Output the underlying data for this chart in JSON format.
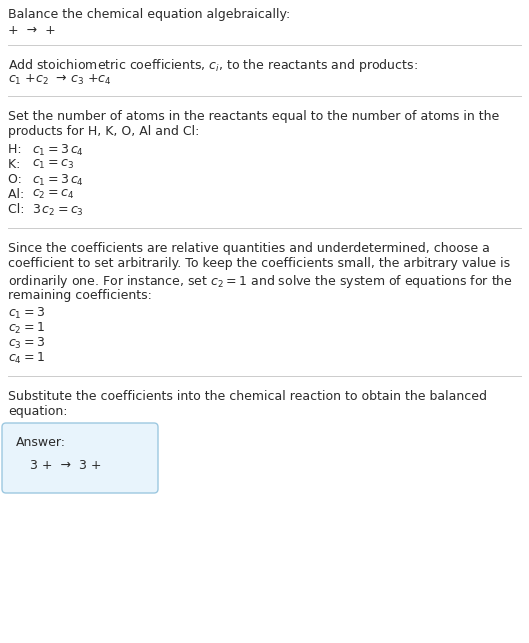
{
  "title": "Balance the chemical equation algebraically:",
  "line1": "+  →  +",
  "section2_title": "Add stoichiometric coefficients, $c_i$, to the reactants and products:",
  "line2_parts": [
    "$c_1$",
    " +",
    "$c_2$",
    "  → ",
    "$c_3$",
    " +",
    "$c_4$"
  ],
  "section3_title_l1": "Set the number of atoms in the reactants equal to the number of atoms in the",
  "section3_title_l2": "products for H, K, O, Al and Cl:",
  "equations": [
    [
      "H:  ",
      "$c_1 = 3\\,c_4$"
    ],
    [
      "K:  ",
      "$c_1 = c_3$"
    ],
    [
      "O:  ",
      "$c_1 = 3\\,c_4$"
    ],
    [
      "Al:  ",
      "$c_2 = c_4$"
    ],
    [
      "Cl:  ",
      "$3\\,c_2 = c_3$"
    ]
  ],
  "section4_l1": "Since the coefficients are relative quantities and underdetermined, choose a",
  "section4_l2": "coefficient to set arbitrarily. To keep the coefficients small, the arbitrary value is",
  "section4_l3": "ordinarily one. For instance, set $c_2 = 1$ and solve the system of equations for the",
  "section4_l4": "remaining coefficients:",
  "solution": [
    "$c_1 = 3$",
    "$c_2 = 1$",
    "$c_3 = 3$",
    "$c_4 = 1$"
  ],
  "section5_l1": "Substitute the coefficients into the chemical reaction to obtain the balanced",
  "section5_l2": "equation:",
  "answer_label": "Answer:",
  "answer_line": "3 +  →  3 +",
  "bg_color": "#ffffff",
  "text_color": "#2b2b2b",
  "line_color": "#cccccc",
  "answer_box_facecolor": "#e8f4fc",
  "answer_box_edgecolor": "#9dc8e0",
  "fs": 9.0,
  "fs_math": 9.0
}
